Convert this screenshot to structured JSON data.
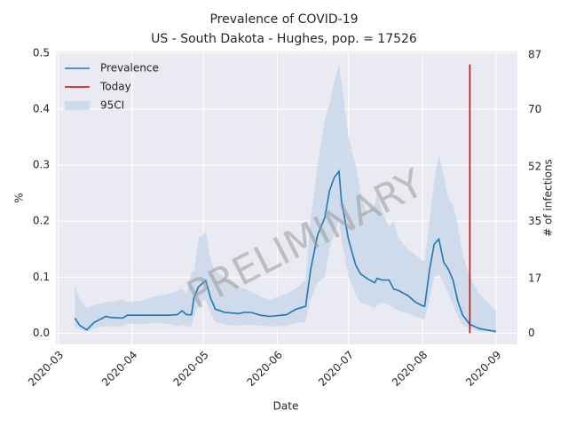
{
  "chart_data": {
    "type": "line",
    "title": "Prevalence of COVID-19",
    "subtitle": "US - South Dakota - Hughes, pop. = 17526",
    "xlabel": "Date",
    "ylabel": "%",
    "y2label": "# of infections",
    "annotation": "PRELIMINARY",
    "legend": "upper left",
    "grid": true,
    "xlim": [
      "2020-02-29",
      "2020-09-10"
    ],
    "xticks": [
      {
        "value": "2020-03-01",
        "label": "2020-03"
      },
      {
        "value": "2020-04-01",
        "label": "2020-04"
      },
      {
        "value": "2020-05-01",
        "label": "2020-05"
      },
      {
        "value": "2020-06-01",
        "label": "2020-06"
      },
      {
        "value": "2020-07-01",
        "label": "2020-07"
      },
      {
        "value": "2020-08-01",
        "label": "2020-08"
      },
      {
        "value": "2020-09-01",
        "label": "2020-09"
      }
    ],
    "ylim": [
      -0.02,
      0.5
    ],
    "yticks": [
      {
        "value": 0,
        "label": "0.0"
      },
      0.1,
      0.2,
      0.3,
      0.4,
      0.5
    ],
    "y2lim": [
      -3.5,
      87.6
    ],
    "y2ticks": [
      0,
      17,
      35,
      52,
      70,
      87
    ],
    "x": [
      "2020-03-08",
      "2020-03-10",
      "2020-03-13",
      "2020-03-16",
      "2020-03-21",
      "2020-03-23",
      "2020-03-28",
      "2020-03-30",
      "2020-04-05",
      "2020-04-10",
      "2020-04-16",
      "2020-04-20",
      "2020-04-22",
      "2020-04-24",
      "2020-04-26",
      "2020-04-27",
      "2020-04-29",
      "2020-05-02",
      "2020-05-04",
      "2020-05-06",
      "2020-05-10",
      "2020-05-16",
      "2020-05-18",
      "2020-05-21",
      "2020-05-25",
      "2020-05-29",
      "2020-06-05",
      "2020-06-09",
      "2020-06-13",
      "2020-06-15",
      "2020-06-18",
      "2020-06-21",
      "2020-06-23",
      "2020-06-25",
      "2020-06-27",
      "2020-06-28",
      "2020-07-01",
      "2020-07-04",
      "2020-07-06",
      "2020-07-09",
      "2020-07-12",
      "2020-07-13",
      "2020-07-15",
      "2020-07-18",
      "2020-07-20",
      "2020-07-22",
      "2020-07-26",
      "2020-07-29",
      "2020-08-01",
      "2020-08-02",
      "2020-08-04",
      "2020-08-06",
      "2020-08-08",
      "2020-08-10",
      "2020-08-12",
      "2020-08-14",
      "2020-08-16",
      "2020-08-18",
      "2020-08-21",
      "2020-08-25",
      "2020-09-01"
    ],
    "series": [
      {
        "name": "Prevalence",
        "color": "#1f77b4",
        "values": [
          0.027,
          0.014,
          0.006,
          0.019,
          0.03,
          0.028,
          0.027,
          0.032,
          0.032,
          0.032,
          0.032,
          0.033,
          0.04,
          0.033,
          0.033,
          0.063,
          0.083,
          0.094,
          0.063,
          0.043,
          0.037,
          0.035,
          0.037,
          0.037,
          0.032,
          0.03,
          0.033,
          0.043,
          0.048,
          0.111,
          0.175,
          0.206,
          0.254,
          0.278,
          0.289,
          0.238,
          0.167,
          0.122,
          0.106,
          0.097,
          0.09,
          0.098,
          0.095,
          0.095,
          0.079,
          0.076,
          0.067,
          0.056,
          0.049,
          0.048,
          0.111,
          0.159,
          0.168,
          0.127,
          0.114,
          0.094,
          0.056,
          0.032,
          0.016,
          0.008,
          0.003
        ]
      },
      {
        "name": "Today",
        "color": "#e00000",
        "x": [
          "2020-08-21",
          "2020-08-21"
        ],
        "values": [
          0,
          0.48
        ]
      }
    ],
    "band": {
      "name": "95CI",
      "color": "#c6d5e8",
      "upper": [
        0.084,
        0.06,
        0.045,
        0.05,
        0.055,
        0.056,
        0.06,
        0.055,
        0.058,
        0.065,
        0.07,
        0.075,
        0.08,
        0.07,
        0.11,
        0.11,
        0.17,
        0.18,
        0.13,
        0.11,
        0.1,
        0.08,
        0.08,
        0.075,
        0.065,
        0.06,
        0.07,
        0.08,
        0.095,
        0.2,
        0.3,
        0.38,
        0.41,
        0.45,
        0.48,
        0.45,
        0.35,
        0.3,
        0.25,
        0.21,
        0.23,
        0.25,
        0.22,
        0.19,
        0.2,
        0.17,
        0.15,
        0.14,
        0.13,
        0.13,
        0.2,
        0.27,
        0.32,
        0.28,
        0.24,
        0.23,
        0.19,
        0.14,
        0.1,
        0.07,
        0.04
      ],
      "lower": [
        0.012,
        0.007,
        0.002,
        0.008,
        0.013,
        0.012,
        0.012,
        0.017,
        0.016,
        0.018,
        0.017,
        0.012,
        0.015,
        0.012,
        0.012,
        0.03,
        0.05,
        0.06,
        0.035,
        0.02,
        0.015,
        0.013,
        0.015,
        0.015,
        0.013,
        0.012,
        0.013,
        0.018,
        0.02,
        0.06,
        0.09,
        0.1,
        0.15,
        0.18,
        0.2,
        0.17,
        0.1,
        0.07,
        0.055,
        0.05,
        0.045,
        0.05,
        0.055,
        0.05,
        0.045,
        0.04,
        0.035,
        0.03,
        0.025,
        0.025,
        0.06,
        0.1,
        0.105,
        0.09,
        0.07,
        0.05,
        0.03,
        0.015,
        0.008,
        0.003,
        0
      ]
    }
  }
}
